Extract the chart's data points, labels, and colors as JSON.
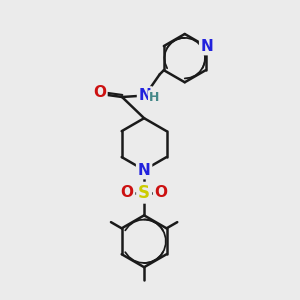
{
  "bg_color": "#ebebeb",
  "bond_color": "#1a1a1a",
  "bond_width": 1.8,
  "atom_colors": {
    "N": "#2222dd",
    "O": "#cc1111",
    "S": "#cccc00",
    "H": "#448888",
    "C": "#1a1a1a"
  },
  "font_size_atom": 11,
  "font_size_h": 9,
  "scale": 1.0
}
